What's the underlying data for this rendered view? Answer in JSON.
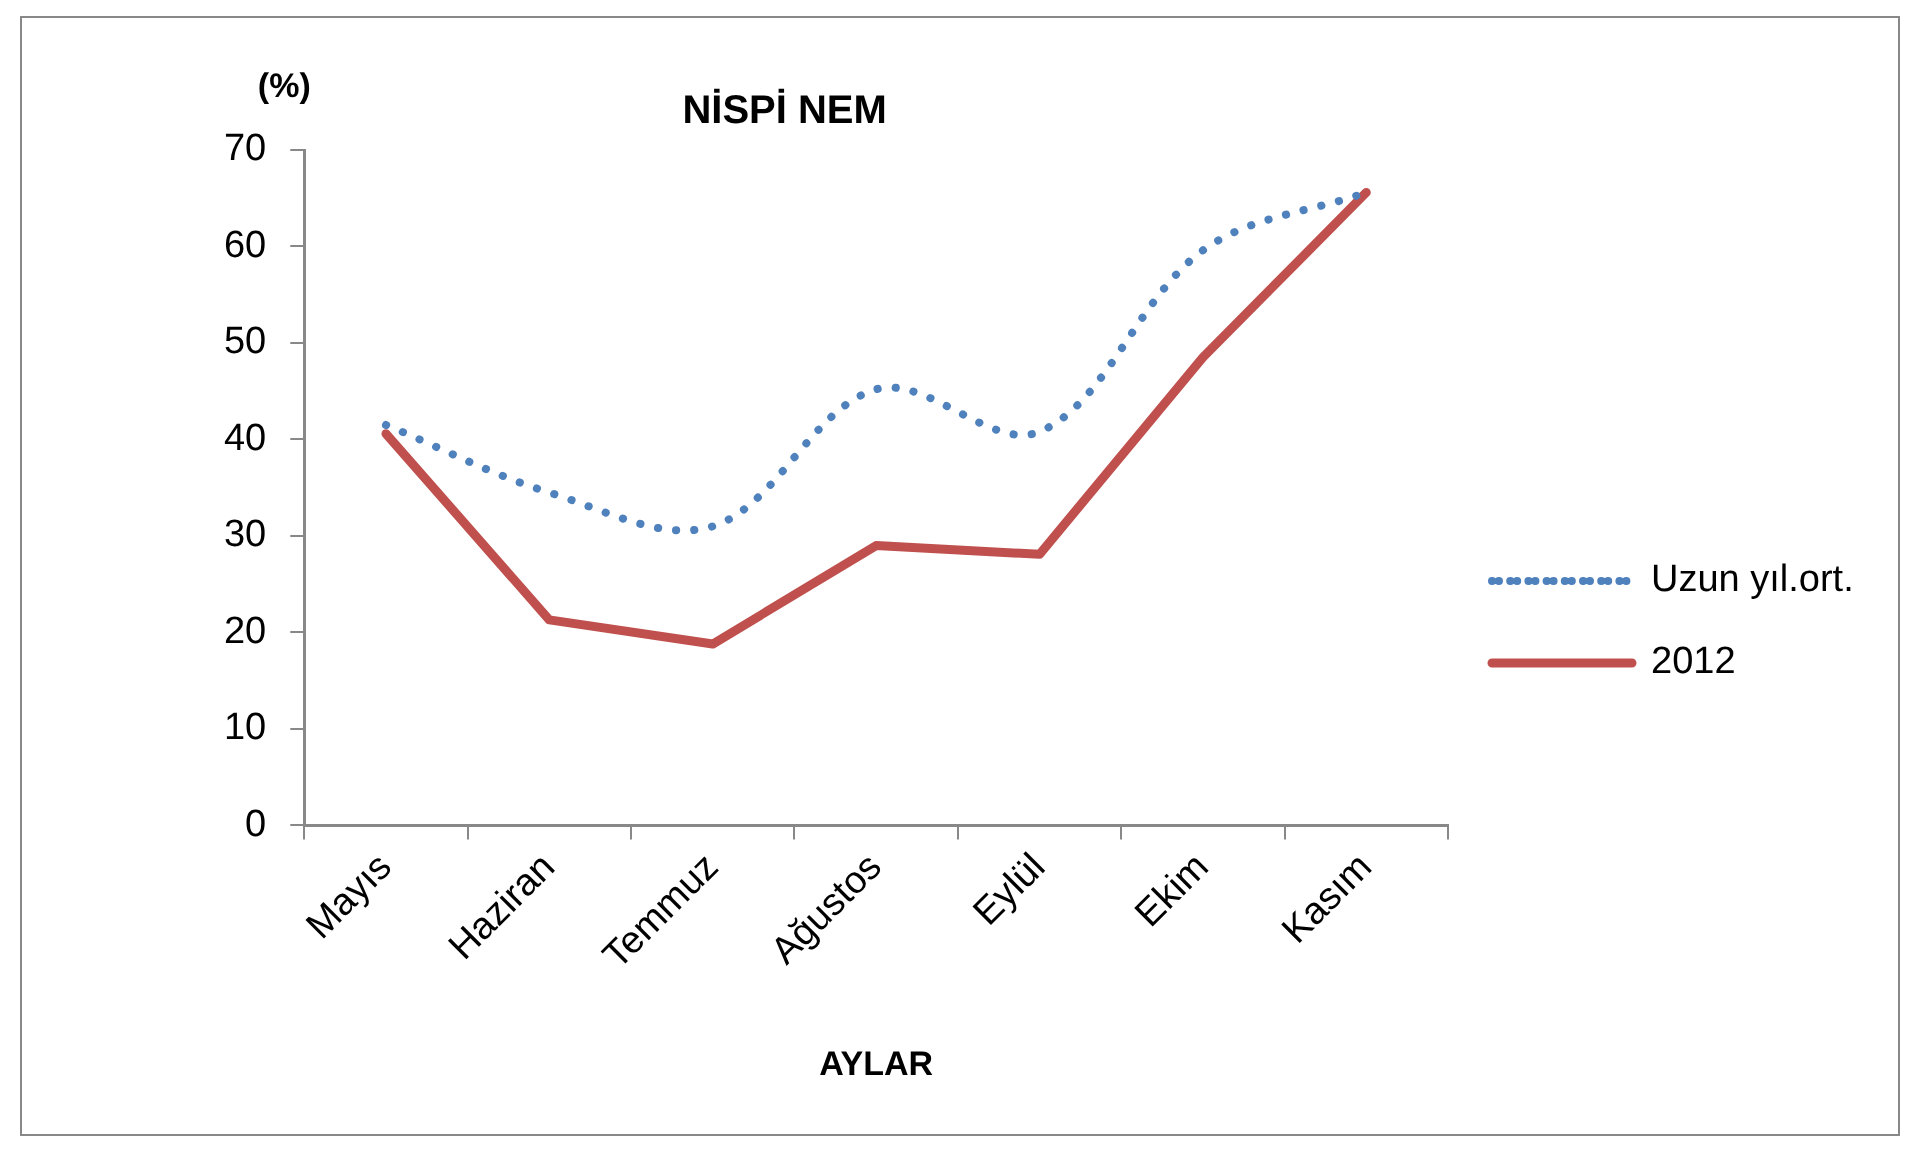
{
  "chart_data": {
    "type": "line",
    "title": "NİSPİ NEM",
    "ylabel": "(%)",
    "xlabel": "AYLAR",
    "categories": [
      "Mayıs",
      "Haziran",
      "Temmuz",
      "Ağustos",
      "Eylül",
      "Ekim",
      "Kasım"
    ],
    "series": [
      {
        "name": "Uzun yıl.ort.",
        "color": "#4f81bd",
        "line_style": "dotted",
        "values": [
          41.5,
          34.5,
          31,
          45.2,
          40.8,
          59.6,
          65.6
        ]
      },
      {
        "name": "2012",
        "color": "#c0504d",
        "line_style": "solid",
        "values": [
          40.6,
          21.3,
          18.8,
          29,
          28.1,
          48.5,
          65.6
        ]
      }
    ],
    "ylim": [
      0,
      70
    ],
    "yticks": [
      0,
      10,
      20,
      30,
      40,
      50,
      60,
      70
    ],
    "grid": false,
    "legend": "right",
    "marker": "none"
  }
}
